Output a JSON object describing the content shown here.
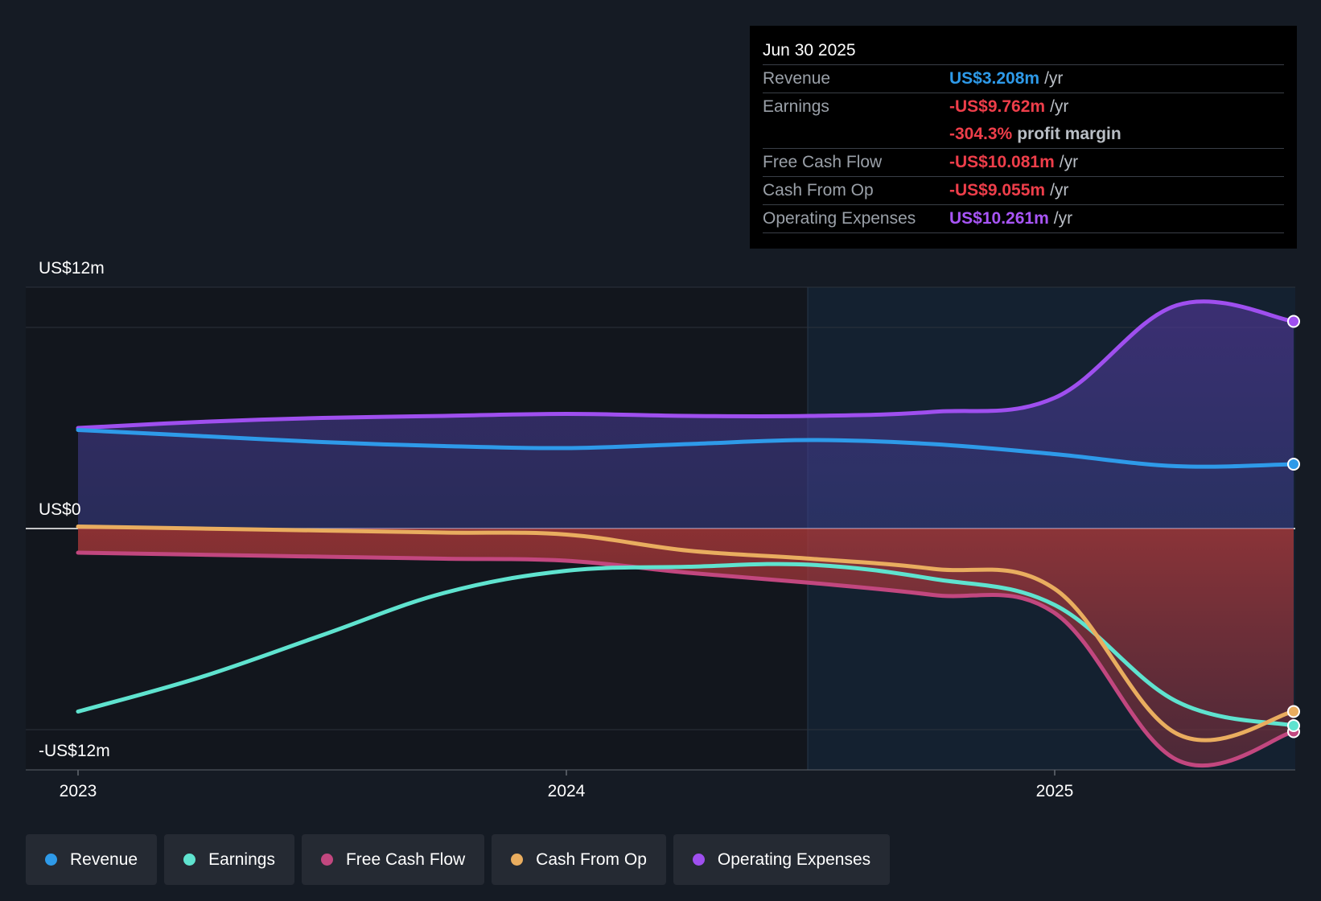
{
  "colors": {
    "revenue": "#2e9ae9",
    "earnings": "#5fe3cf",
    "free_cash_flow": "#c2477f",
    "cash_from_op": "#e9ad5f",
    "operating_expenses": "#9f4fef",
    "background": "#151b24",
    "negative_value": "#ee3e4a"
  },
  "tooltip": {
    "date": "Jun 30 2025",
    "rows": [
      {
        "label": "Revenue",
        "value": "US$3.208m",
        "unit": "/yr"
      },
      {
        "label": "Earnings",
        "value": "-US$9.762m",
        "unit": "/yr"
      },
      {
        "label": "",
        "value": "-304.3%",
        "unit": "profit margin"
      },
      {
        "label": "Free Cash Flow",
        "value": "-US$10.081m",
        "unit": "/yr"
      },
      {
        "label": "Cash From Op",
        "value": "-US$9.055m",
        "unit": "/yr"
      },
      {
        "label": "Operating Expenses",
        "value": "US$10.261m",
        "unit": "/yr"
      }
    ]
  },
  "legend": {
    "items": [
      {
        "label": "Revenue",
        "icon": "circle-dot"
      },
      {
        "label": "Earnings",
        "icon": "circle-dot"
      },
      {
        "label": "Free Cash Flow",
        "icon": "circle-dot"
      },
      {
        "label": "Cash From Op",
        "icon": "circle-dot"
      },
      {
        "label": "Operating Expenses",
        "icon": "circle-dot"
      }
    ]
  },
  "chart_data": {
    "type": "line",
    "x_tick_labels": [
      "2023",
      "2024",
      "2025"
    ],
    "y_tick_labels": [
      "US$12m",
      "US$0",
      "-US$12m"
    ],
    "ylim": [
      -12,
      12
    ],
    "y_unit": "US$m",
    "forecast_shading_from": "2024-07",
    "grid": true,
    "series": [
      {
        "name": "Revenue",
        "points": [
          [
            "2023-01",
            4.9
          ],
          [
            "2023-04",
            4.6
          ],
          [
            "2023-07",
            4.3
          ],
          [
            "2023-10",
            4.1
          ],
          [
            "2024-01",
            4.0
          ],
          [
            "2024-04",
            4.2
          ],
          [
            "2024-07",
            4.4
          ],
          [
            "2024-10",
            4.2
          ],
          [
            "2025-01",
            3.7
          ],
          [
            "2025-04",
            3.1
          ],
          [
            "2025-07",
            3.2
          ]
        ]
      },
      {
        "name": "Earnings",
        "points": [
          [
            "2023-01",
            -9.1
          ],
          [
            "2023-04",
            -7.4
          ],
          [
            "2023-07",
            -5.3
          ],
          [
            "2023-10",
            -3.2
          ],
          [
            "2024-01",
            -2.1
          ],
          [
            "2024-04",
            -1.9
          ],
          [
            "2024-07",
            -1.8
          ],
          [
            "2024-10",
            -2.5
          ],
          [
            "2025-01",
            -3.8
          ],
          [
            "2025-04",
            -8.6
          ],
          [
            "2025-07",
            -9.8
          ]
        ]
      },
      {
        "name": "Free Cash Flow",
        "points": [
          [
            "2023-01",
            -1.2
          ],
          [
            "2023-04",
            -1.3
          ],
          [
            "2023-07",
            -1.4
          ],
          [
            "2023-10",
            -1.5
          ],
          [
            "2024-01",
            -1.6
          ],
          [
            "2024-04",
            -2.2
          ],
          [
            "2024-07",
            -2.7
          ],
          [
            "2024-10",
            -3.3
          ],
          [
            "2025-01",
            -4.2
          ],
          [
            "2025-04",
            -11.5
          ],
          [
            "2025-07",
            -10.1
          ]
        ]
      },
      {
        "name": "Cash From Op",
        "points": [
          [
            "2023-01",
            0.1
          ],
          [
            "2023-04",
            0.0
          ],
          [
            "2023-07",
            -0.1
          ],
          [
            "2023-10",
            -0.2
          ],
          [
            "2024-01",
            -0.3
          ],
          [
            "2024-04",
            -1.1
          ],
          [
            "2024-07",
            -1.5
          ],
          [
            "2024-10",
            -2.0
          ],
          [
            "2025-01",
            -3.0
          ],
          [
            "2025-04",
            -10.2
          ],
          [
            "2025-07",
            -9.1
          ]
        ]
      },
      {
        "name": "Operating Expenses",
        "points": [
          [
            "2023-01",
            5.0
          ],
          [
            "2023-04",
            5.3
          ],
          [
            "2023-07",
            5.5
          ],
          [
            "2023-10",
            5.6
          ],
          [
            "2024-01",
            5.7
          ],
          [
            "2024-04",
            5.6
          ],
          [
            "2024-07",
            5.6
          ],
          [
            "2024-10",
            5.8
          ],
          [
            "2025-01",
            6.5
          ],
          [
            "2025-04",
            11.1
          ],
          [
            "2025-07",
            10.3
          ]
        ]
      }
    ]
  }
}
